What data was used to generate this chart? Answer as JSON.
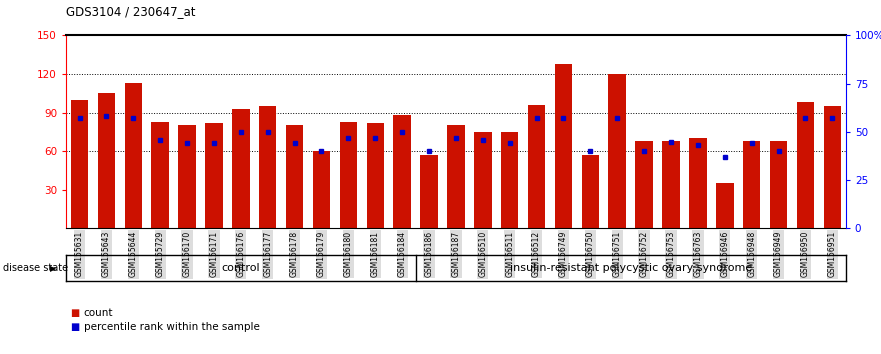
{
  "title": "GDS3104 / 230647_at",
  "samples": [
    "GSM155631",
    "GSM155643",
    "GSM155644",
    "GSM155729",
    "GSM156170",
    "GSM156171",
    "GSM156176",
    "GSM156177",
    "GSM156178",
    "GSM156179",
    "GSM156180",
    "GSM156181",
    "GSM156184",
    "GSM156186",
    "GSM156187",
    "GSM156510",
    "GSM156511",
    "GSM156512",
    "GSM156749",
    "GSM156750",
    "GSM156751",
    "GSM156752",
    "GSM156753",
    "GSM156763",
    "GSM156946",
    "GSM156948",
    "GSM156949",
    "GSM156950",
    "GSM156951"
  ],
  "bar_values": [
    100,
    105,
    113,
    83,
    80,
    82,
    93,
    95,
    80,
    60,
    83,
    82,
    88,
    57,
    80,
    75,
    75,
    96,
    128,
    57,
    120,
    68,
    68,
    70,
    35,
    68,
    68,
    98,
    95
  ],
  "dot_pct": [
    57,
    58,
    57,
    46,
    44,
    44,
    50,
    50,
    44,
    40,
    47,
    47,
    50,
    40,
    47,
    46,
    44,
    57,
    57,
    40,
    57,
    40,
    45,
    43,
    37,
    44,
    40,
    57,
    57
  ],
  "control_count": 13,
  "disease_count": 16,
  "bar_color": "#cc1100",
  "dot_color": "#0000cc",
  "ylim_left": [
    0,
    150
  ],
  "yticks_left": [
    30,
    60,
    90,
    120,
    150
  ],
  "ylim_right": [
    0,
    100
  ],
  "yticks_right": [
    0,
    25,
    50,
    75,
    100
  ],
  "ytick_labels_right": [
    "0",
    "25",
    "50",
    "75",
    "100%"
  ],
  "grid_values": [
    60,
    90,
    120
  ],
  "control_label": "control",
  "disease_label": "insulin-resistant polycystic ovary syndrome",
  "disease_state_label": "disease state",
  "legend_count_label": "count",
  "legend_pct_label": "percentile rank within the sample",
  "control_color": "#ccffcc",
  "disease_color": "#55dd55",
  "bg_color": "#ffffff",
  "bar_width": 0.65,
  "tick_bg_color": "#dddddd"
}
